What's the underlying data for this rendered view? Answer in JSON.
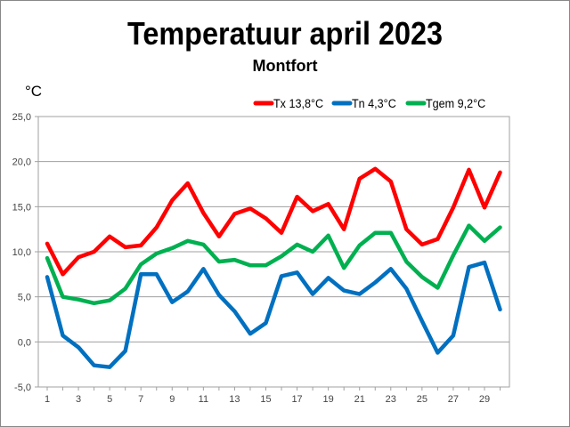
{
  "chart_data": {
    "type": "line",
    "title": "Temperatuur april 2023",
    "subtitle": "Montfort",
    "ylabel": "°C",
    "xlabel": "",
    "ylim": [
      -5,
      25
    ],
    "yticks": [
      "25,0",
      "20,0",
      "15,0",
      "10,0",
      "5,0",
      "0,0",
      "-5,0"
    ],
    "ytick_values": [
      25,
      20,
      15,
      10,
      5,
      0,
      -5
    ],
    "x": [
      1,
      2,
      3,
      4,
      5,
      6,
      7,
      8,
      9,
      10,
      11,
      12,
      13,
      14,
      15,
      16,
      17,
      18,
      19,
      20,
      21,
      22,
      23,
      24,
      25,
      26,
      27,
      28,
      29,
      30
    ],
    "xtick_labels": [
      "1",
      "3",
      "5",
      "7",
      "9",
      "11",
      "13",
      "15",
      "17",
      "19",
      "21",
      "23",
      "25",
      "27",
      "29"
    ],
    "grid": "horizontal",
    "legend_position": "top-right",
    "series": [
      {
        "name": "Tx 13,8°C",
        "color": "#ff0000",
        "values": [
          10.9,
          7.5,
          9.4,
          10.0,
          11.7,
          10.5,
          10.7,
          12.7,
          15.7,
          17.6,
          14.3,
          11.7,
          14.2,
          14.8,
          13.7,
          12.1,
          16.1,
          14.5,
          15.3,
          12.5,
          18.1,
          19.2,
          17.8,
          12.5,
          10.8,
          11.4,
          14.9,
          19.1,
          14.9,
          18.8
        ]
      },
      {
        "name": "Tn 4,3°C",
        "color": "#0070c0",
        "values": [
          7.2,
          0.7,
          -0.6,
          -2.6,
          -2.8,
          -1.0,
          7.5,
          7.5,
          4.4,
          5.6,
          8.1,
          5.2,
          3.4,
          0.9,
          2.1,
          7.3,
          7.7,
          5.3,
          7.1,
          5.7,
          5.3,
          6.6,
          8.1,
          5.9,
          2.3,
          -1.2,
          0.7,
          8.3,
          8.8,
          3.6
        ]
      },
      {
        "name": "Tgem 9,2°C",
        "color": "#00b050",
        "values": [
          9.3,
          5.0,
          4.7,
          4.3,
          4.6,
          5.9,
          8.6,
          9.8,
          10.4,
          11.2,
          10.8,
          8.9,
          9.1,
          8.5,
          8.5,
          9.5,
          10.8,
          10.0,
          11.8,
          8.2,
          10.7,
          12.1,
          12.1,
          8.9,
          7.2,
          6.0,
          9.6,
          12.9,
          11.2,
          12.7
        ]
      }
    ]
  }
}
